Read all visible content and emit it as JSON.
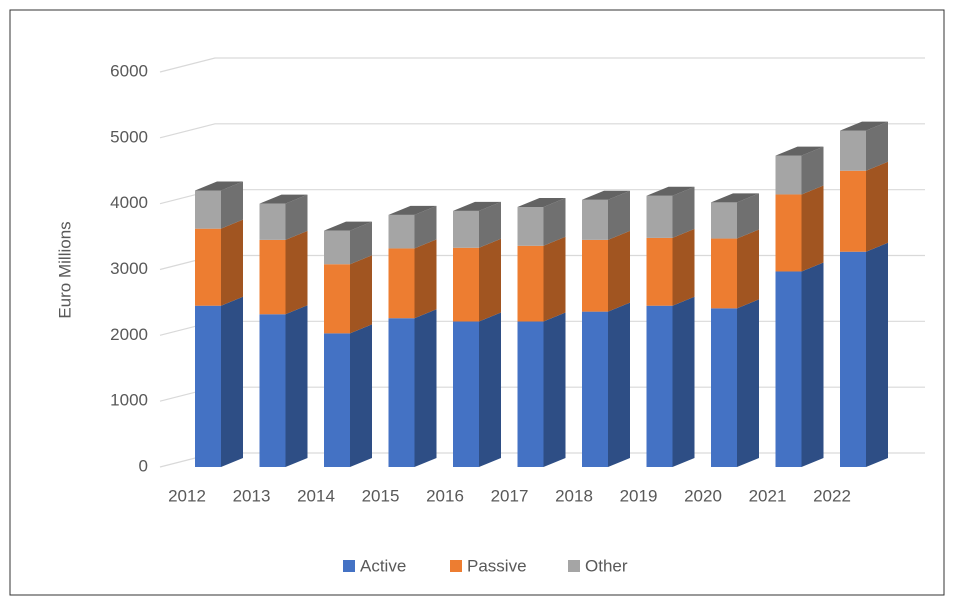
{
  "chart_data": {
    "type": "bar3d_stacked",
    "y_label": "Euro Millions",
    "categories": [
      "2012",
      "2013",
      "2014",
      "2015",
      "2016",
      "2017",
      "2018",
      "2019",
      "2020",
      "2021",
      "2022"
    ],
    "series": [
      {
        "name": "Active",
        "color": "#4472c4",
        "values": [
          2450,
          2320,
          2030,
          2260,
          2210,
          2210,
          2360,
          2450,
          2410,
          2970,
          3270
        ]
      },
      {
        "name": "Passive",
        "color": "#ed7d31",
        "values": [
          1170,
          1130,
          1050,
          1060,
          1120,
          1150,
          1090,
          1030,
          1060,
          1170,
          1230
        ]
      },
      {
        "name": "Other",
        "color": "#a5a5a5",
        "values": [
          580,
          550,
          510,
          510,
          560,
          590,
          610,
          640,
          550,
          590,
          610
        ]
      }
    ],
    "ylim": [
      0,
      6000
    ],
    "yticks": [
      0,
      1000,
      2000,
      3000,
      4000,
      5000,
      6000
    ],
    "grid": true,
    "legend": "bottom"
  }
}
